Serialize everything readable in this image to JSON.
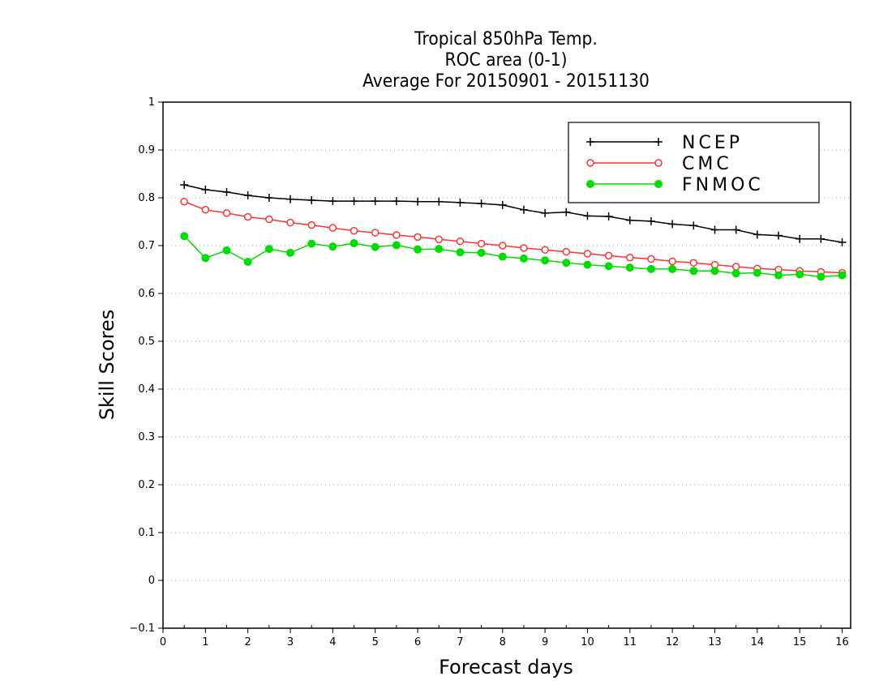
{
  "chart_data": {
    "type": "line",
    "title_lines": [
      "Tropical 850hPa Temp.",
      "ROC area (0-1)",
      "Average For 20150901 - 20151130"
    ],
    "xlabel": "Forecast days",
    "ylabel": "Skill Scores",
    "xlim": [
      0,
      16.2
    ],
    "ylim": [
      -0.1,
      1
    ],
    "xticks": [
      0,
      1,
      2,
      3,
      4,
      5,
      6,
      7,
      8,
      9,
      10,
      11,
      12,
      13,
      14,
      15,
      16
    ],
    "yticks": [
      -0.1,
      0,
      0.1,
      0.2,
      0.3,
      0.4,
      0.5,
      0.6,
      0.7,
      0.8,
      0.9,
      1
    ],
    "ytick_labels": [
      "−0.1",
      "0",
      "0.1",
      "0.2",
      "0.3",
      "0.4",
      "0.5",
      "0.6",
      "0.7",
      "0.8",
      "0.9",
      "1"
    ],
    "grid": "horizontal-dotted",
    "legend_position": "top-right",
    "x": [
      0.5,
      1.0,
      1.5,
      2.0,
      2.5,
      3.0,
      3.5,
      4.0,
      4.5,
      5.0,
      5.5,
      6.0,
      6.5,
      7.0,
      7.5,
      8.0,
      8.5,
      9.0,
      9.5,
      10.0,
      10.5,
      11.0,
      11.5,
      12.0,
      12.5,
      13.0,
      13.5,
      14.0,
      14.5,
      15.0,
      15.5,
      16.0
    ],
    "series": [
      {
        "name": "NCEP",
        "color": "#000000",
        "marker": "plus",
        "values": [
          0.827,
          0.817,
          0.812,
          0.805,
          0.8,
          0.797,
          0.795,
          0.793,
          0.793,
          0.793,
          0.793,
          0.792,
          0.792,
          0.79,
          0.788,
          0.785,
          0.775,
          0.768,
          0.77,
          0.762,
          0.761,
          0.753,
          0.751,
          0.745,
          0.742,
          0.733,
          0.733,
          0.723,
          0.721,
          0.714,
          0.714,
          0.707
        ]
      },
      {
        "name": "CMC",
        "color": "#ff3333",
        "marker": "open-circle",
        "values": [
          0.792,
          0.775,
          0.768,
          0.76,
          0.755,
          0.748,
          0.743,
          0.737,
          0.731,
          0.727,
          0.722,
          0.718,
          0.713,
          0.709,
          0.704,
          0.7,
          0.695,
          0.691,
          0.687,
          0.683,
          0.679,
          0.675,
          0.672,
          0.667,
          0.664,
          0.66,
          0.656,
          0.652,
          0.65,
          0.647,
          0.645,
          0.643
        ]
      },
      {
        "name": "FNMOC",
        "color": "#00dd00",
        "marker": "filled-circle",
        "values": [
          0.72,
          0.674,
          0.69,
          0.666,
          0.693,
          0.685,
          0.704,
          0.698,
          0.705,
          0.697,
          0.701,
          0.692,
          0.693,
          0.686,
          0.685,
          0.677,
          0.673,
          0.669,
          0.664,
          0.66,
          0.657,
          0.654,
          0.651,
          0.651,
          0.647,
          0.647,
          0.642,
          0.643,
          0.638,
          0.64,
          0.635,
          0.638
        ]
      }
    ]
  }
}
